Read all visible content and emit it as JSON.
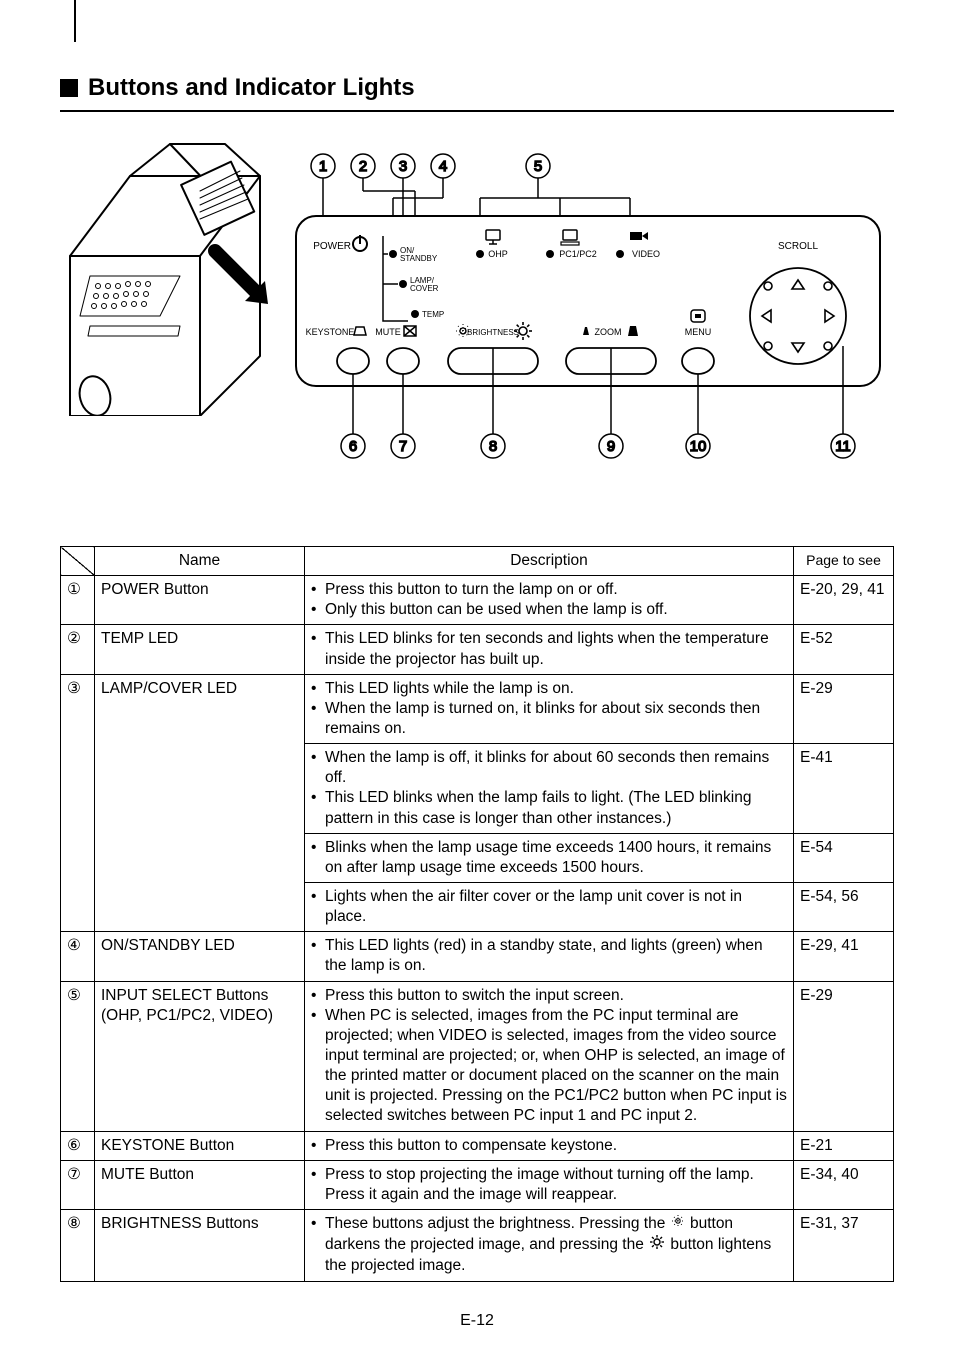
{
  "heading": "Buttons and Indicator Lights",
  "pageFooter": "E-12",
  "diagram": {
    "topCallouts": [
      "1",
      "2",
      "3",
      "4",
      "5"
    ],
    "bottomCallouts": [
      "6",
      "7",
      "8",
      "9",
      "10",
      "11"
    ],
    "panelLabels": {
      "power": "POWER",
      "onStandby": "ON/\nSTANDBY",
      "lampCover": "LAMP/\nCOVER",
      "temp": "TEMP",
      "ohp": "OHP",
      "pc": "PC1/PC2",
      "video": "VIDEO",
      "scroll": "SCROLL",
      "keystone": "KEYSTONE",
      "mute": "MUTE",
      "brightness": "BRIGHTNESS",
      "zoom": "ZOOM",
      "menu": "MENU"
    }
  },
  "table": {
    "headers": {
      "name": "Name",
      "description": "Description",
      "page": "Page to see"
    },
    "rows": [
      {
        "num": "①",
        "name": "POWER Button",
        "descs": [
          [
            "Press this button to turn the lamp on or off.",
            "Only this button can be used when the lamp is off."
          ]
        ],
        "pages": [
          "E-20, 29, 41"
        ]
      },
      {
        "num": "②",
        "name": "TEMP LED",
        "descs": [
          [
            "This LED blinks for ten seconds and lights when the temperature inside the projector has built up."
          ]
        ],
        "pages": [
          "E-52"
        ]
      },
      {
        "num": "③",
        "name": "LAMP/COVER LED",
        "descs": [
          [
            "This LED lights while the lamp is on.",
            "When the lamp is turned on, it blinks for about six seconds then remains on."
          ],
          [
            "When the lamp is off, it blinks for about 60 seconds then remains off.",
            "This LED blinks when the lamp fails to light. (The LED blinking pattern in this case is longer than other instances.)"
          ],
          [
            "Blinks when the lamp usage time exceeds 1400 hours, it remains on after lamp usage time exceeds 1500 hours."
          ],
          [
            "Lights when the air filter cover or the lamp unit cover is not in place."
          ]
        ],
        "pages": [
          "E-29",
          "E-41",
          "E-54",
          "E-54, 56"
        ]
      },
      {
        "num": "④",
        "name": "ON/STANDBY LED",
        "descs": [
          [
            "This LED lights (red) in a standby state, and lights (green) when the lamp is on."
          ]
        ],
        "pages": [
          "E-29, 41"
        ]
      },
      {
        "num": "⑤",
        "name": "INPUT SELECT Buttons (OHP, PC1/PC2, VIDEO)",
        "descs": [
          [
            "Press this button to switch the input screen.",
            "When PC is selected, images from the PC input terminal are projected; when VIDEO is selected, images from the video source input terminal are projected; or, when OHP is selected, an image of the printed matter or document placed on the scanner on the main unit is projected. Pressing on the PC1/PC2 button when PC input is selected switches between PC input 1 and PC input 2."
          ]
        ],
        "pages": [
          "E-29"
        ]
      },
      {
        "num": "⑥",
        "name": "KEYSTONE Button",
        "descs": [
          [
            "Press this button to compensate keystone."
          ]
        ],
        "pages": [
          "E-21"
        ]
      },
      {
        "num": "⑦",
        "name": "MUTE Button",
        "descs": [
          [
            "Press to stop projecting the image without turning off the lamp. Press it again and the image will reappear."
          ]
        ],
        "pages": [
          "E-34, 40"
        ]
      },
      {
        "num": "⑧",
        "name": "BRIGHTNESS Buttons",
        "descs": [
          [
            "__BRIGHTNESS__"
          ]
        ],
        "pages": [
          "E-31, 37"
        ]
      }
    ],
    "brightnessDescParts": {
      "a": "These buttons adjust the brightness. Pressing the ",
      "b": " button darkens the projected image, and pressing the ",
      "c": " button lightens the projected image."
    }
  },
  "colors": {
    "line": "#000000",
    "bg": "#ffffff"
  }
}
